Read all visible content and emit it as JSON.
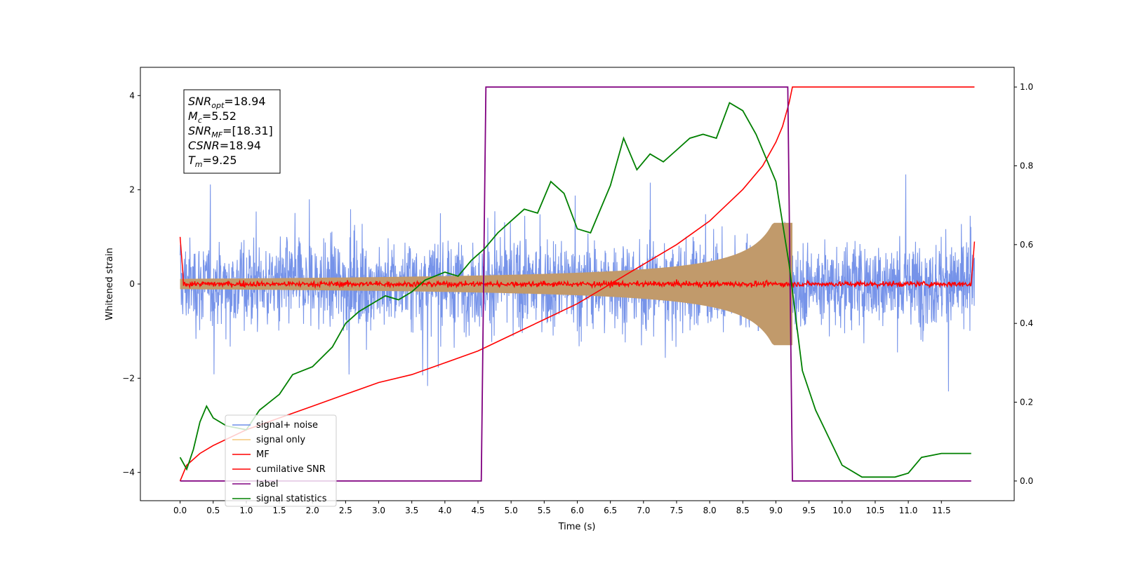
{
  "chart_data": {
    "type": "line",
    "xlabel": "Time (s)",
    "ylabel": "Whitened strain",
    "xlim": [
      -0.6,
      12.6
    ],
    "x_ticks": [
      0.0,
      0.5,
      1.0,
      1.5,
      2.0,
      2.5,
      3.0,
      3.5,
      4.0,
      4.5,
      5.0,
      5.5,
      6.0,
      6.5,
      7.0,
      7.5,
      8.0,
      8.5,
      9.0,
      9.5,
      10.0,
      10.5,
      11.0,
      11.5
    ],
    "x_tick_labels": [
      "0.0",
      "0.5",
      "1.0",
      "1.5",
      "2.0",
      "2.5",
      "3.0",
      "3.5",
      "4.0",
      "4.5",
      "5.0",
      "5.5",
      "6.0",
      "6.5",
      "7.0",
      "7.5",
      "8.0",
      "8.5",
      "9.0",
      "9.5",
      "10.0",
      "10.5",
      "11.0",
      "11.5"
    ],
    "ylim_left": [
      -4.6,
      4.6
    ],
    "y_left_ticks": [
      -4,
      -2,
      0,
      2,
      4
    ],
    "y_left_tick_labels": [
      "−4",
      "−2",
      "0",
      "2",
      "4"
    ],
    "ylim_right": [
      -0.05,
      1.05
    ],
    "y_right_ticks": [
      0.0,
      0.2,
      0.4,
      0.6,
      0.8,
      1.0
    ],
    "y_right_tick_labels": [
      "0.0",
      "0.2",
      "0.4",
      "0.6",
      "0.8",
      "1.0"
    ],
    "grid": false,
    "legend_position": "lower-left",
    "series": [
      {
        "name": "signal+ noise",
        "color": "#6f8de8",
        "kind": "noisy-trace",
        "x_range": [
          0,
          12.0
        ],
        "noise_std": 0.9,
        "axis": "left"
      },
      {
        "name": "signal only",
        "color": "#f5c97a",
        "kind": "chirp",
        "x_range": [
          0,
          9.25
        ],
        "axis": "left"
      },
      {
        "name": "MF",
        "color": "#ff0000",
        "kind": "noisy-trace",
        "x_range": [
          0,
          12.0
        ],
        "noise_std": 0.04,
        "axis": "left"
      },
      {
        "name": "cumilative SNR",
        "color": "#ff0000",
        "axis": "right",
        "x": [
          0.0,
          0.1,
          0.3,
          0.5,
          1.0,
          1.5,
          2.0,
          2.5,
          3.0,
          3.5,
          4.0,
          4.5,
          5.0,
          5.5,
          6.0,
          6.5,
          7.0,
          7.5,
          8.0,
          8.5,
          8.8,
          9.0,
          9.1,
          9.2,
          9.25,
          12.0
        ],
        "y": [
          0.0,
          0.04,
          0.07,
          0.09,
          0.13,
          0.16,
          0.19,
          0.22,
          0.25,
          0.27,
          0.3,
          0.33,
          0.37,
          0.41,
          0.45,
          0.5,
          0.55,
          0.6,
          0.66,
          0.74,
          0.8,
          0.86,
          0.9,
          0.96,
          1.0,
          1.0
        ]
      },
      {
        "name": "label",
        "color": "#800080",
        "axis": "right",
        "x": [
          0.0,
          4.55,
          4.62,
          9.18,
          9.25,
          11.95
        ],
        "y": [
          0,
          0,
          1,
          1,
          0,
          0
        ]
      },
      {
        "name": "signal statistics",
        "color": "#008000",
        "axis": "right",
        "x": [
          0.0,
          0.1,
          0.2,
          0.3,
          0.4,
          0.5,
          0.7,
          1.0,
          1.2,
          1.5,
          1.7,
          2.0,
          2.3,
          2.5,
          2.7,
          3.0,
          3.1,
          3.3,
          3.5,
          3.7,
          4.0,
          4.2,
          4.4,
          4.6,
          4.8,
          5.0,
          5.2,
          5.4,
          5.6,
          5.8,
          6.0,
          6.2,
          6.3,
          6.5,
          6.7,
          6.9,
          7.1,
          7.3,
          7.5,
          7.7,
          7.9,
          8.1,
          8.3,
          8.5,
          8.7,
          9.0,
          9.2,
          9.4,
          9.6,
          9.8,
          10.0,
          10.3,
          10.6,
          10.8,
          11.0,
          11.2,
          11.5,
          11.95
        ],
        "y": [
          0.06,
          0.03,
          0.08,
          0.15,
          0.19,
          0.16,
          0.14,
          0.13,
          0.18,
          0.22,
          0.27,
          0.29,
          0.34,
          0.4,
          0.43,
          0.46,
          0.47,
          0.46,
          0.48,
          0.51,
          0.53,
          0.52,
          0.56,
          0.59,
          0.63,
          0.66,
          0.69,
          0.68,
          0.76,
          0.73,
          0.64,
          0.63,
          0.67,
          0.75,
          0.87,
          0.79,
          0.83,
          0.81,
          0.84,
          0.87,
          0.88,
          0.87,
          0.96,
          0.94,
          0.88,
          0.76,
          0.55,
          0.28,
          0.18,
          0.11,
          0.04,
          0.01,
          0.01,
          0.01,
          0.02,
          0.06,
          0.07,
          0.07
        ]
      }
    ],
    "annotation": {
      "lines": [
        {
          "sym": "SNR",
          "sub": "opt",
          "val": "=18.94"
        },
        {
          "sym": "M",
          "sub": "c",
          "val": "=5.52"
        },
        {
          "sym": "SNR",
          "sub": "MF",
          "val": "=[18.31]"
        },
        {
          "sym": "CSNR",
          "sub": "",
          "val": "=18.94"
        },
        {
          "sym": "T",
          "sub": "m",
          "val": "=9.25"
        }
      ]
    }
  }
}
